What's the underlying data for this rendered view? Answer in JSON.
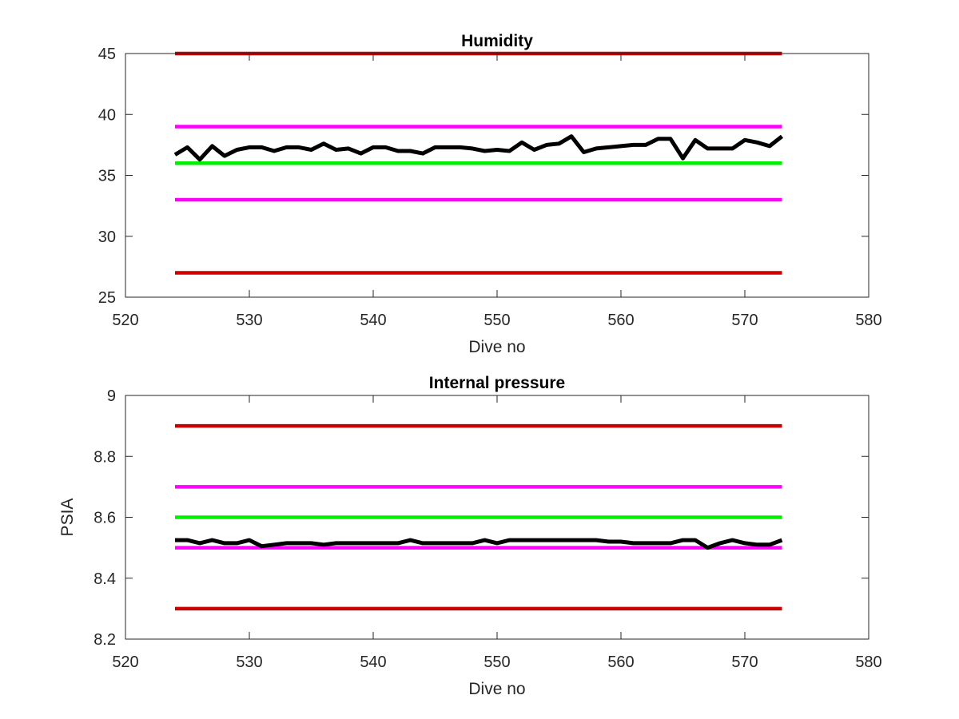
{
  "figure": {
    "background": "#ffffff"
  },
  "chart_data": [
    {
      "type": "line",
      "title": "Humidity",
      "xlabel": "Dive no",
      "ylabel": "",
      "xlim": [
        520,
        580
      ],
      "ylim": [
        25,
        45
      ],
      "xticks": [
        520,
        530,
        540,
        550,
        560,
        570,
        580
      ],
      "yticks": [
        25,
        30,
        35,
        40,
        45
      ],
      "grid": false,
      "series": [
        {
          "color": "#cc0000",
          "x": [
            524,
            573
          ],
          "values": [
            45,
            45
          ]
        },
        {
          "color": "#ff00ff",
          "x": [
            524,
            573
          ],
          "values": [
            39,
            39
          ]
        },
        {
          "color": "#00ee00",
          "x": [
            524,
            573
          ],
          "values": [
            36,
            36
          ]
        },
        {
          "color": "#ff00ff",
          "x": [
            524,
            573
          ],
          "values": [
            33,
            33
          ]
        },
        {
          "color": "#cc0000",
          "x": [
            524,
            573
          ],
          "values": [
            27,
            27
          ]
        },
        {
          "color": "#000000",
          "x": [
            524,
            525,
            526,
            527,
            528,
            529,
            530,
            531,
            532,
            533,
            534,
            535,
            536,
            537,
            538,
            539,
            540,
            541,
            542,
            543,
            544,
            545,
            546,
            547,
            548,
            549,
            550,
            551,
            552,
            553,
            554,
            555,
            556,
            557,
            558,
            559,
            560,
            561,
            562,
            563,
            564,
            565,
            566,
            567,
            568,
            569,
            570,
            571,
            572,
            573
          ],
          "values": [
            36.7,
            37.3,
            36.3,
            37.4,
            36.6,
            37.1,
            37.3,
            37.3,
            37.0,
            37.3,
            37.3,
            37.1,
            37.6,
            37.1,
            37.2,
            36.8,
            37.3,
            37.3,
            37.0,
            37.0,
            36.8,
            37.3,
            37.3,
            37.3,
            37.2,
            37.0,
            37.1,
            37.0,
            37.7,
            37.1,
            37.5,
            37.6,
            38.2,
            36.9,
            37.2,
            37.3,
            37.4,
            37.5,
            37.5,
            38.0,
            38.0,
            36.4,
            37.9,
            37.2,
            37.2,
            37.2,
            37.9,
            37.7,
            37.4,
            38.2
          ]
        }
      ]
    },
    {
      "type": "line",
      "title": "Internal pressure",
      "xlabel": "Dive no",
      "ylabel": "PSIA",
      "xlim": [
        520,
        580
      ],
      "ylim": [
        8.2,
        9
      ],
      "xticks": [
        520,
        530,
        540,
        550,
        560,
        570,
        580
      ],
      "yticks": [
        8.2,
        8.4,
        8.6,
        8.8,
        9
      ],
      "grid": false,
      "series": [
        {
          "color": "#cc0000",
          "x": [
            524,
            573
          ],
          "values": [
            8.9,
            8.9
          ]
        },
        {
          "color": "#ff00ff",
          "x": [
            524,
            573
          ],
          "values": [
            8.7,
            8.7
          ]
        },
        {
          "color": "#00ee00",
          "x": [
            524,
            573
          ],
          "values": [
            8.6,
            8.6
          ]
        },
        {
          "color": "#ff00ff",
          "x": [
            524,
            573
          ],
          "values": [
            8.5,
            8.5
          ]
        },
        {
          "color": "#cc0000",
          "x": [
            524,
            573
          ],
          "values": [
            8.3,
            8.3
          ]
        },
        {
          "color": "#000000",
          "x": [
            524,
            525,
            526,
            527,
            528,
            529,
            530,
            531,
            532,
            533,
            534,
            535,
            536,
            537,
            538,
            539,
            540,
            541,
            542,
            543,
            544,
            545,
            546,
            547,
            548,
            549,
            550,
            551,
            552,
            553,
            554,
            555,
            556,
            557,
            558,
            559,
            560,
            561,
            562,
            563,
            564,
            565,
            566,
            567,
            568,
            569,
            570,
            571,
            572,
            573
          ],
          "values": [
            8.525,
            8.525,
            8.515,
            8.525,
            8.515,
            8.515,
            8.525,
            8.505,
            8.51,
            8.515,
            8.515,
            8.515,
            8.51,
            8.515,
            8.515,
            8.515,
            8.515,
            8.515,
            8.515,
            8.525,
            8.515,
            8.515,
            8.515,
            8.515,
            8.515,
            8.525,
            8.515,
            8.525,
            8.525,
            8.525,
            8.525,
            8.525,
            8.525,
            8.525,
            8.525,
            8.52,
            8.52,
            8.515,
            8.515,
            8.515,
            8.515,
            8.525,
            8.525,
            8.5,
            8.515,
            8.525,
            8.515,
            8.51,
            8.51,
            8.525
          ]
        }
      ]
    }
  ]
}
